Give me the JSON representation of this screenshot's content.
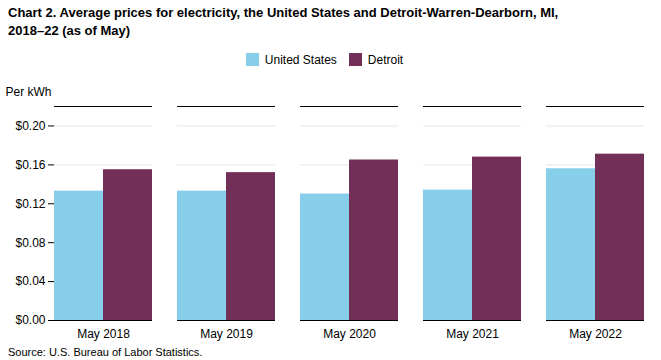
{
  "chart_data": {
    "type": "bar",
    "title": "Chart 2. Average prices for electricity, the United States and Detroit-Warren-Dearborn, MI,\n2018–22 (as of May)",
    "y_label": "Per kWh",
    "source": "Source: U.S. Bureau of Labor Statistics.",
    "categories": [
      "May 2018",
      "May 2019",
      "May 2020",
      "May 2021",
      "May 2022"
    ],
    "series": [
      {
        "name": "United States",
        "color": "#87CEEB",
        "values": [
          0.133,
          0.133,
          0.13,
          0.134,
          0.156
        ]
      },
      {
        "name": "Detroit",
        "color": "#722F57",
        "values": [
          0.155,
          0.152,
          0.165,
          0.168,
          0.171
        ]
      }
    ],
    "ylim": [
      0.0,
      0.22
    ],
    "yticks": [
      {
        "value": 0.0,
        "label": "$0.00"
      },
      {
        "value": 0.04,
        "label": "$0.04"
      },
      {
        "value": 0.08,
        "label": "$0.08"
      },
      {
        "value": 0.12,
        "label": "$0.12"
      },
      {
        "value": 0.16,
        "label": "$0.16"
      },
      {
        "value": 0.2,
        "label": "$0.20"
      }
    ],
    "grid": true,
    "legend": "top"
  }
}
